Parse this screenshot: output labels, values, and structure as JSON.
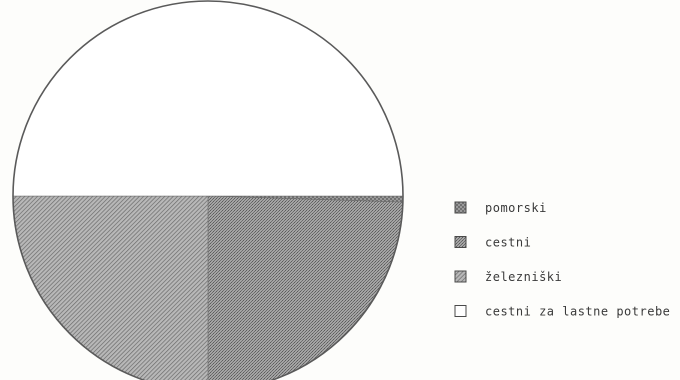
{
  "chart_data": {
    "type": "pie",
    "title": "",
    "slices": [
      {
        "label": "pomorski",
        "value": 0.5,
        "pattern": "fill-pomorski"
      },
      {
        "label": "cestni",
        "value": 24.5,
        "pattern": "fill-cestni"
      },
      {
        "label": "železniški",
        "value": 25.0,
        "pattern": "fill-zelezniski"
      },
      {
        "label": "cestni za lastne potrebe",
        "value": 50.0,
        "pattern": "fill-lastne"
      }
    ],
    "start_angle_deg": 0,
    "direction": "clockwise",
    "legend_position": "right"
  },
  "colors": {
    "background": "#fdfdfb",
    "outline": "#5a5a5a",
    "pomorski": "#8a8a8a",
    "cestni": "#909090",
    "zelezniski": "#a5a5a5",
    "lastne": "#ffffff"
  }
}
